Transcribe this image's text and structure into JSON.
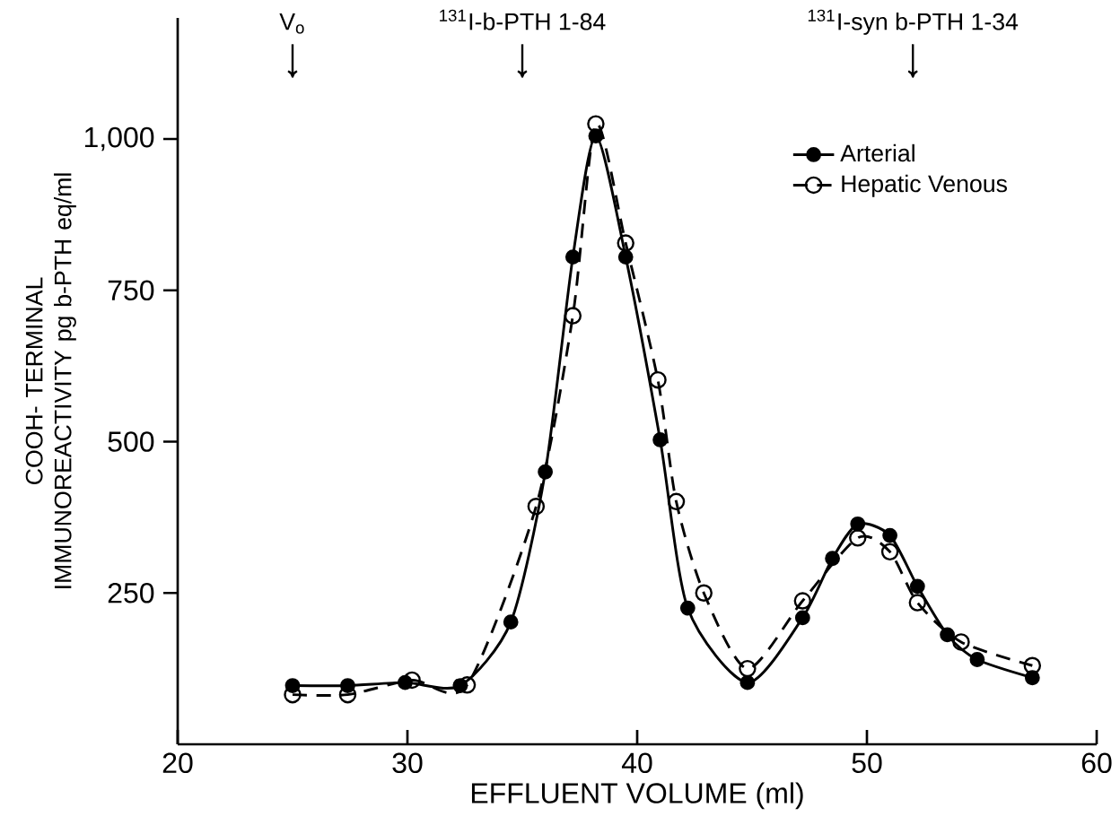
{
  "chart_data": {
    "type": "line",
    "xlabel": "EFFLUENT VOLUME (ml)",
    "ylabel": "COOH- TERMINAL IMMUNOREACTIVITY pg b-PTH eq/ml",
    "xlim": [
      20,
      60
    ],
    "xticks": [
      20,
      30,
      40,
      50,
      60
    ],
    "ylim": [
      0,
      1200
    ],
    "yticks": [
      250,
      500,
      750,
      {
        "value": 1000,
        "label": "1,000"
      }
    ],
    "grid": false,
    "legend": "top right",
    "marker": "circle",
    "ref_lines": [
      {
        "axis": "x",
        "value": 25,
        "label": "V$_{o}$"
      },
      {
        "axis": "x",
        "value": 35,
        "label": "$^{131}$I-b-PTH 1-84"
      },
      {
        "axis": "x",
        "value": 52,
        "label": "$^{131}$I-syn b-PTH 1-34"
      }
    ],
    "series": [
      {
        "name": "Arterial",
        "color": "#000000",
        "line_style": "solid",
        "x": [
          25,
          27.4,
          29.9,
          32.3,
          34.5,
          36.0,
          37.2,
          38.2,
          39.5,
          41.0,
          42.2,
          44.8,
          47.2,
          48.5,
          49.6,
          51.0,
          52.2,
          53.5,
          54.8,
          57.2
        ],
        "values": [
          97,
          97,
          102,
          97,
          202,
          450,
          805,
          1005,
          805,
          503,
          225,
          102,
          209,
          307,
          364,
          345,
          261,
          181,
          140,
          110
        ]
      },
      {
        "name": "Hepatic Venous",
        "color": "#000000",
        "line_style": "dashed",
        "x": [
          25,
          27.4,
          30.2,
          32.6,
          35.6,
          37.2,
          38.2,
          39.5,
          40.9,
          41.7,
          42.9,
          44.8,
          47.2,
          49.6,
          51.0,
          52.2,
          54.1,
          57.2
        ],
        "values": [
          82,
          82,
          106,
          98,
          393,
          708,
          1025,
          828,
          602,
          401,
          250,
          125,
          237,
          341,
          318,
          234,
          169,
          130
        ]
      }
    ]
  }
}
